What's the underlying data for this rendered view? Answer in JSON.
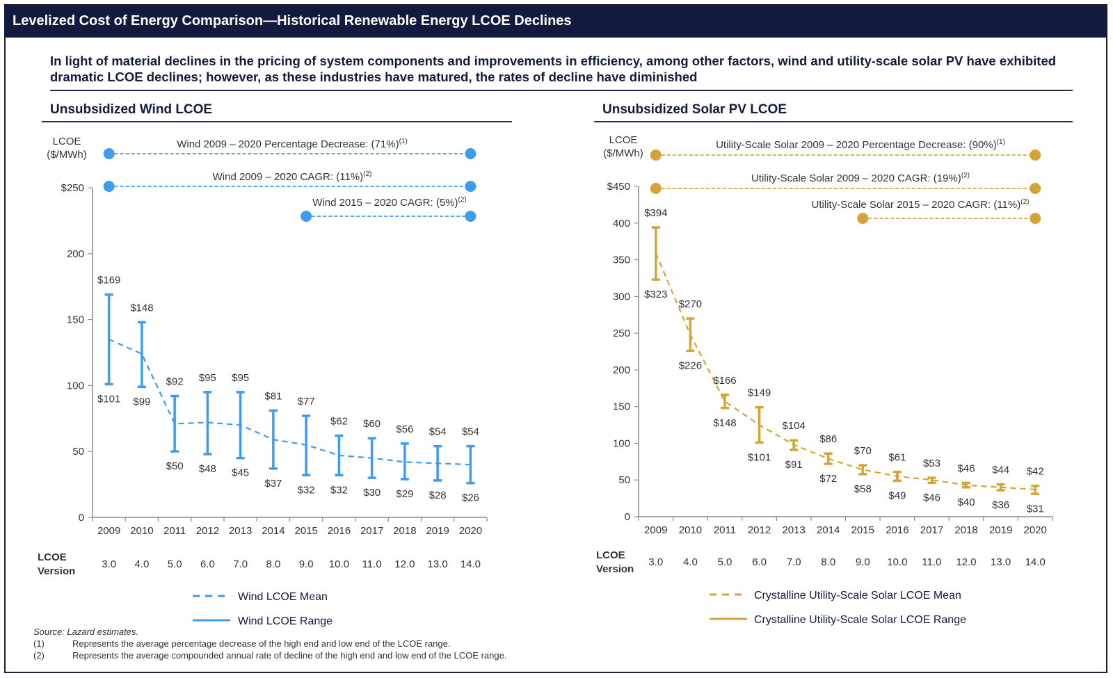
{
  "page": {
    "title": "Levelized Cost of Energy Comparison—Historical Renewable Energy LCOE Declines",
    "headline": "In light of material declines in the pricing of system components and improvements in efficiency, among other factors, wind and utility-scale solar PV have exhibited dramatic LCOE declines; however, as these industries have matured, the rates of decline have diminished",
    "source": "Source:  Lazard estimates.",
    "footnotes": [
      {
        "marker": "(1)",
        "text": "Represents the average percentage decrease of the high end and low end of the LCOE range."
      },
      {
        "marker": "(2)",
        "text": "Represents the average compounded annual rate of decline of the high end and low end of the LCOE range."
      }
    ],
    "version_label_line1": "LCOE",
    "version_label_line2": "Version"
  },
  "chart_data": [
    {
      "type": "line",
      "title": "Unsubsidized Wind LCOE",
      "ylabel_line1": "LCOE",
      "ylabel_line2": "($/MWh)",
      "color": "#3d9bf0",
      "ylim": [
        0,
        250
      ],
      "yticks": [
        0,
        50,
        100,
        150,
        200,
        250
      ],
      "ytick_labels": [
        "0",
        "50",
        "100",
        "150",
        "200",
        "$250"
      ],
      "categories": [
        "2009",
        "2010",
        "2011",
        "2012",
        "2013",
        "2014",
        "2015",
        "2016",
        "2017",
        "2018",
        "2019",
        "2020"
      ],
      "versions": [
        "3.0",
        "4.0",
        "5.0",
        "6.0",
        "7.0",
        "8.0",
        "9.0",
        "10.0",
        "11.0",
        "12.0",
        "13.0",
        "14.0"
      ],
      "series": [
        {
          "name": "Wind LCOE Range High",
          "values": [
            169,
            148,
            92,
            95,
            95,
            81,
            77,
            62,
            60,
            56,
            54,
            54
          ]
        },
        {
          "name": "Wind LCOE Range Low",
          "values": [
            101,
            99,
            50,
            48,
            45,
            37,
            32,
            32,
            30,
            29,
            28,
            26
          ]
        },
        {
          "name": "Wind LCOE Mean",
          "values": [
            135,
            124,
            71,
            72,
            70,
            59,
            55,
            47,
            45,
            42,
            41,
            40
          ]
        }
      ],
      "annotations": [
        {
          "label": "Wind 2009 – 2020 Percentage Decrease: (71%)",
          "sup": "(1)",
          "from": "2009",
          "to": "2020"
        },
        {
          "label": "Wind 2009 – 2020 CAGR: (11%)",
          "sup": "(2)",
          "from": "2009",
          "to": "2020"
        },
        {
          "label": "Wind 2015 – 2020 CAGR: (5%)",
          "sup": "(2)",
          "from": "2015",
          "to": "2020"
        }
      ],
      "legend": [
        {
          "label": "Wind LCOE Mean",
          "style": "dashed"
        },
        {
          "label": "Wind LCOE Range",
          "style": "solid"
        }
      ],
      "legend_position": "bottom"
    },
    {
      "type": "line",
      "title": "Unsubsidized Solar PV LCOE",
      "ylabel_line1": "LCOE",
      "ylabel_line2": "($/MWh)",
      "color": "#d4a437",
      "ylim": [
        0,
        450
      ],
      "yticks": [
        0,
        50,
        100,
        150,
        200,
        250,
        300,
        350,
        400,
        450
      ],
      "ytick_labels": [
        "0",
        "50",
        "100",
        "150",
        "200",
        "250",
        "300",
        "350",
        "400",
        "$450"
      ],
      "categories": [
        "2009",
        "2010",
        "2011",
        "2012",
        "2013",
        "2014",
        "2015",
        "2016",
        "2017",
        "2018",
        "2019",
        "2020"
      ],
      "versions": [
        "3.0",
        "4.0",
        "5.0",
        "6.0",
        "7.0",
        "8.0",
        "9.0",
        "10.0",
        "11.0",
        "12.0",
        "13.0",
        "14.0"
      ],
      "series": [
        {
          "name": "Crystalline Utility-Scale Solar LCOE Range High",
          "values": [
            394,
            270,
            166,
            149,
            104,
            86,
            70,
            61,
            53,
            46,
            44,
            42
          ]
        },
        {
          "name": "Crystalline Utility-Scale Solar LCOE Range Low",
          "values": [
            323,
            226,
            148,
            101,
            91,
            72,
            58,
            49,
            46,
            40,
            36,
            31
          ]
        },
        {
          "name": "Crystalline Utility-Scale Solar LCOE Mean",
          "values": [
            359,
            248,
            157,
            125,
            98,
            79,
            64,
            55,
            50,
            43,
            40,
            37
          ]
        }
      ],
      "annotations": [
        {
          "label": "Utility-Scale Solar 2009 – 2020 Percentage Decrease: (90%)",
          "sup": "(1)",
          "from": "2009",
          "to": "2020"
        },
        {
          "label": "Utility-Scale Solar 2009 – 2020 CAGR: (19%)",
          "sup": "(2)",
          "from": "2009",
          "to": "2020"
        },
        {
          "label": "Utility-Scale Solar 2015 – 2020 CAGR: (11%)",
          "sup": "(2)",
          "from": "2015",
          "to": "2020"
        }
      ],
      "legend": [
        {
          "label": "Crystalline Utility-Scale Solar LCOE Mean",
          "style": "dashed"
        },
        {
          "label": "Crystalline Utility-Scale Solar LCOE Range",
          "style": "solid"
        }
      ],
      "legend_position": "bottom"
    }
  ]
}
